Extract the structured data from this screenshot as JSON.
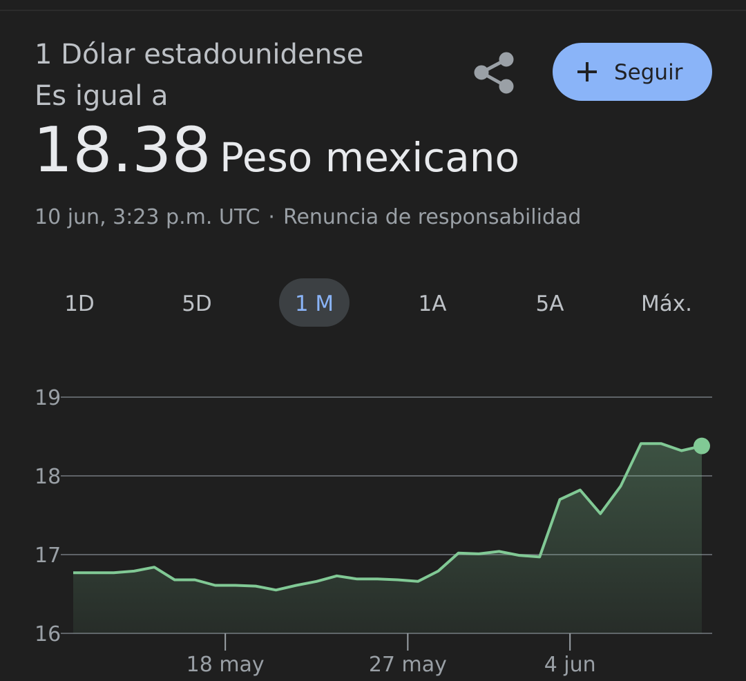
{
  "header": {
    "amount": "1 Dólar estadounidense",
    "equals": "Es igual a",
    "value": "18.38",
    "currency": "Peso mexicano",
    "timestamp": "10 jun, 3:23 p.m. UTC",
    "separator": "·",
    "disclaimer": "Renuncia de responsabilidad"
  },
  "follow_button": "Seguir",
  "tabs": [
    "1D",
    "5D",
    "1 M",
    "1A",
    "5A",
    "Máx."
  ],
  "selected_tab": 2,
  "chart_data": {
    "type": "line",
    "values": [
      16.77,
      16.77,
      16.77,
      16.79,
      16.84,
      16.68,
      16.68,
      16.61,
      16.61,
      16.6,
      16.55,
      16.61,
      16.66,
      16.73,
      16.69,
      16.69,
      16.68,
      16.66,
      16.79,
      17.02,
      17.01,
      17.04,
      16.99,
      16.97,
      17.7,
      17.82,
      17.52,
      17.87,
      18.41,
      18.41,
      18.32,
      18.38
    ],
    "color": "#81c995",
    "xlim": [
      0,
      31
    ],
    "xticks": [
      {
        "value": 7.5,
        "label": "18 may"
      },
      {
        "value": 16.5,
        "label": "27 may"
      },
      {
        "value": 24.5,
        "label": "4 jun"
      }
    ],
    "ylim": [
      16,
      19
    ],
    "yticks": [
      16,
      17,
      18,
      19
    ],
    "grid": true
  }
}
